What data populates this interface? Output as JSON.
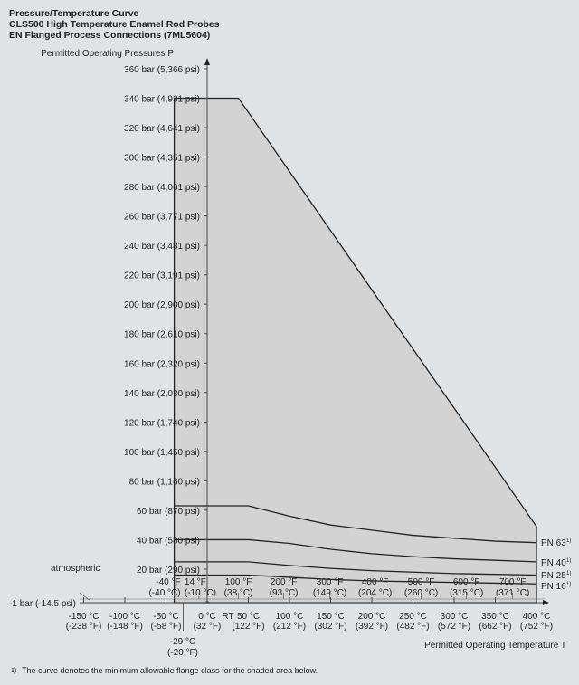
{
  "title_lines": [
    "Pressure/Temperature Curve",
    "CLS500 High Temperature Enamel Rod Probes",
    "EN Flanged Process Connections (7ML5604)"
  ],
  "footnote_mark": "1)",
  "footnote": "The curve denotes the minimum allowable flange class for the shaded area below.",
  "chart_data": {
    "type": "area",
    "ylabel": "Permitted Operating Pressures P",
    "xlabel": "Permitted Operating Temperature T",
    "xlim": [
      -160,
      410
    ],
    "ylim": [
      -1,
      360
    ],
    "y_ticks": [
      {
        "v": 360,
        "label": "360 bar (5,366 psi)"
      },
      {
        "v": 340,
        "label": "340 bar (4,931 psi)"
      },
      {
        "v": 320,
        "label": "320 bar (4,641 psi)"
      },
      {
        "v": 300,
        "label": "300 bar (4,351 psi)"
      },
      {
        "v": 280,
        "label": "280 bar (4,061 psi)"
      },
      {
        "v": 260,
        "label": "260 bar (3,771 psi)"
      },
      {
        "v": 240,
        "label": "240 bar (3,481 psi)"
      },
      {
        "v": 220,
        "label": "220 bar (3,191 psi)"
      },
      {
        "v": 200,
        "label": "200 bar (2,900 psi)"
      },
      {
        "v": 180,
        "label": "180 bar (2,610 psi)"
      },
      {
        "v": 160,
        "label": "160 bar (2,320 psi)"
      },
      {
        "v": 140,
        "label": "140 bar (2,030 psi)"
      },
      {
        "v": 120,
        "label": "120 bar (1,740 psi)"
      },
      {
        "v": 100,
        "label": "100 bar (1,450 psi)"
      },
      {
        "v": 80,
        "label": "80 bar (1,160 psi)"
      },
      {
        "v": 60,
        "label": "60 bar (870 psi)"
      },
      {
        "v": 40,
        "label": "40 bar (580 psi)"
      },
      {
        "v": 20,
        "label": "20 bar (290 psi)"
      },
      {
        "v": -1,
        "label": "-1 bar (-14.5 psi)"
      }
    ],
    "atmospheric_label": "atmospheric",
    "x_ticks_bottom": [
      {
        "v": -150,
        "c": "-150 °C",
        "f": "(-238 °F)"
      },
      {
        "v": -100,
        "c": "-100 °C",
        "f": "(-148 °F)"
      },
      {
        "v": -50,
        "c": "-50 °C",
        "f": "(-58 °F)"
      },
      {
        "v": 0,
        "c": "0 °C",
        "f": "(32 °F)"
      },
      {
        "v": 50,
        "c": "50 °C",
        "f": "(122 °F)"
      },
      {
        "v": 100,
        "c": "100 °C",
        "f": "(212 °F)"
      },
      {
        "v": 150,
        "c": "150 °C",
        "f": "(302 °F)"
      },
      {
        "v": 200,
        "c": "200 °C",
        "f": "(392 °F)"
      },
      {
        "v": 250,
        "c": "250 °C",
        "f": "(482 °F)"
      },
      {
        "v": 300,
        "c": "300 °C",
        "f": "(572 °F)"
      },
      {
        "v": 350,
        "c": "350 °C",
        "f": "(662 °F)"
      },
      {
        "v": 400,
        "c": "400 °C",
        "f": "(752 °F)"
      }
    ],
    "x_ticks_top": [
      {
        "v": -40,
        "f": "-40 °F",
        "c": "(-40 °C)"
      },
      {
        "v": -10,
        "f": "14 °F",
        "c": "(-10 °C)"
      },
      {
        "v": 38,
        "f": "100 °F",
        "c": "(38 °C)"
      },
      {
        "v": 93,
        "f": "200 °F",
        "c": "(93 °C)"
      },
      {
        "v": 149,
        "f": "300 °F",
        "c": "(149 °C)"
      },
      {
        "v": 204,
        "f": "400 °F",
        "c": "(204 °C)"
      },
      {
        "v": 260,
        "f": "500 °F",
        "c": "(260 °C)"
      },
      {
        "v": 315,
        "f": "600 °F",
        "c": "(315 °C)"
      },
      {
        "v": 371,
        "f": "700 °F",
        "c": "(371 °C)"
      }
    ],
    "rt_label": "RT",
    "min_temp": {
      "v": -29,
      "c": "-29 °C",
      "f": "(-20 °F)"
    },
    "envelope": {
      "x": [
        -40,
        -40,
        38,
        400,
        400
      ],
      "y": [
        -1,
        340,
        340,
        49,
        -1
      ]
    },
    "series": [
      {
        "name": "PN 63",
        "x": [
          -40,
          50,
          100,
          150,
          200,
          250,
          300,
          350,
          400
        ],
        "y": [
          63,
          63,
          56,
          50,
          46.5,
          43,
          41,
          39,
          38
        ]
      },
      {
        "name": "PN 40",
        "x": [
          -40,
          50,
          100,
          150,
          200,
          250,
          300,
          350,
          400
        ],
        "y": [
          40,
          40,
          37.5,
          33.5,
          30.5,
          28.5,
          27,
          26,
          25
        ]
      },
      {
        "name": "PN 25",
        "x": [
          -40,
          50,
          100,
          150,
          200,
          250,
          300,
          350,
          400
        ],
        "y": [
          25,
          25,
          22.5,
          20.5,
          19,
          18,
          17,
          16.5,
          16
        ]
      },
      {
        "name": "PN 16",
        "x": [
          -40,
          50,
          100,
          150,
          200,
          250,
          300,
          350,
          400
        ],
        "y": [
          16,
          16,
          14.5,
          13,
          12,
          11.5,
          11,
          10.5,
          10
        ]
      }
    ],
    "colors": {
      "background": "#dfe3e6",
      "shade": "#d3d3d3",
      "line": "#222222"
    }
  }
}
